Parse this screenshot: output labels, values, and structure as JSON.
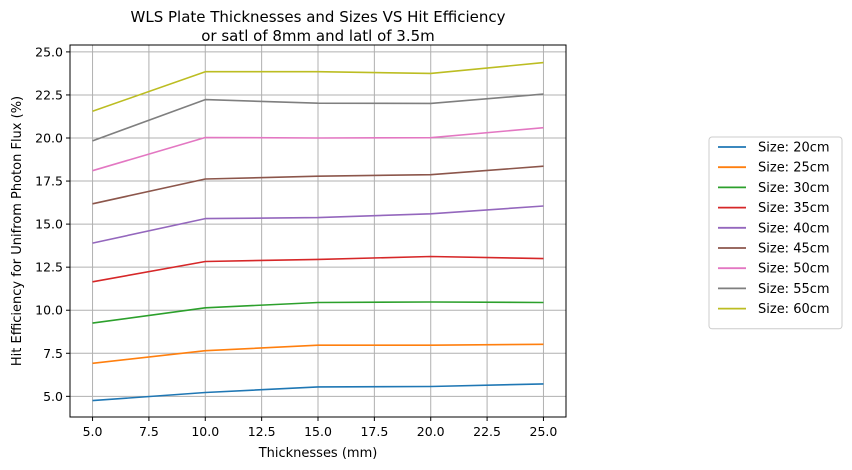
{
  "chart_data": {
    "type": "line",
    "title": "WLS Plate Thicknesses and Sizes VS Hit Efficiency",
    "subtitle": "or satl of 8mm and latl of 3.5m",
    "xlabel": "Thicknesses (mm)",
    "ylabel": "Hit Efficiency for Unifrom Photon Flux (%)",
    "x": [
      5,
      10,
      15,
      20,
      25
    ],
    "xlim": [
      4.0,
      26.0
    ],
    "ylim": [
      3.8,
      25.4
    ],
    "xticks": [
      5.0,
      7.5,
      10.0,
      12.5,
      15.0,
      17.5,
      20.0,
      22.5,
      25.0
    ],
    "yticks": [
      5.0,
      7.5,
      10.0,
      12.5,
      15.0,
      17.5,
      20.0,
      22.5,
      25.0
    ],
    "xtick_labels": [
      "5.0",
      "7.5",
      "10.0",
      "12.5",
      "15.0",
      "17.5",
      "20.0",
      "22.5",
      "25.0"
    ],
    "ytick_labels": [
      "5.0",
      "7.5",
      "10.0",
      "12.5",
      "15.0",
      "17.5",
      "20.0",
      "22.5",
      "25.0"
    ],
    "grid": true,
    "legend_position": "right, outside plot",
    "series": [
      {
        "name": "Size: 20cm",
        "color": "#1f77b4",
        "values": [
          4.75,
          5.22,
          5.55,
          5.57,
          5.72
        ]
      },
      {
        "name": "Size: 25cm",
        "color": "#ff7f0e",
        "values": [
          6.92,
          7.65,
          7.97,
          7.97,
          8.02
        ]
      },
      {
        "name": "Size: 30cm",
        "color": "#2ca02c",
        "values": [
          9.25,
          10.14,
          10.45,
          10.48,
          10.45
        ]
      },
      {
        "name": "Size: 35cm",
        "color": "#d62728",
        "values": [
          11.65,
          12.83,
          12.95,
          13.12,
          13.0
        ]
      },
      {
        "name": "Size: 40cm",
        "color": "#9467bd",
        "values": [
          13.9,
          15.32,
          15.38,
          15.6,
          16.05
        ]
      },
      {
        "name": "Size: 45cm",
        "color": "#8c564b",
        "values": [
          16.18,
          17.62,
          17.78,
          17.87,
          18.36
        ]
      },
      {
        "name": "Size: 50cm",
        "color": "#e377c2",
        "values": [
          18.1,
          20.03,
          20.0,
          20.02,
          20.6
        ]
      },
      {
        "name": "Size: 55cm",
        "color": "#7f7f7f",
        "values": [
          19.83,
          22.23,
          22.02,
          22.01,
          22.55
        ]
      },
      {
        "name": "Size: 60cm",
        "color": "#bcbd22",
        "values": [
          21.55,
          23.85,
          23.85,
          23.75,
          24.38
        ]
      }
    ]
  }
}
